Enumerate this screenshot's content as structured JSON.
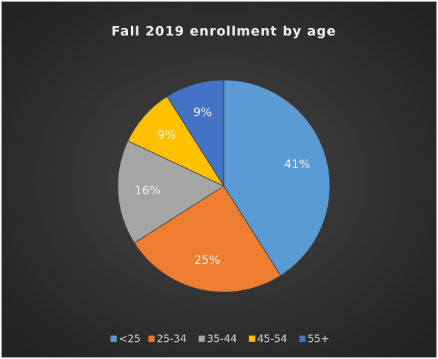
{
  "chart_data": {
    "type": "pie",
    "title": "Fall 2019 enrollment by age",
    "categories": [
      "<25",
      "25-34",
      "35-44",
      "45-54",
      "55+"
    ],
    "values": [
      41,
      25,
      16,
      9,
      9
    ],
    "value_labels": [
      "41%",
      "25%",
      "16%",
      "9%",
      "9%"
    ],
    "colors": [
      "#5b9bd5",
      "#ed7d31",
      "#a5a5a5",
      "#ffc000",
      "#4472c4"
    ],
    "legend": "bottom"
  }
}
